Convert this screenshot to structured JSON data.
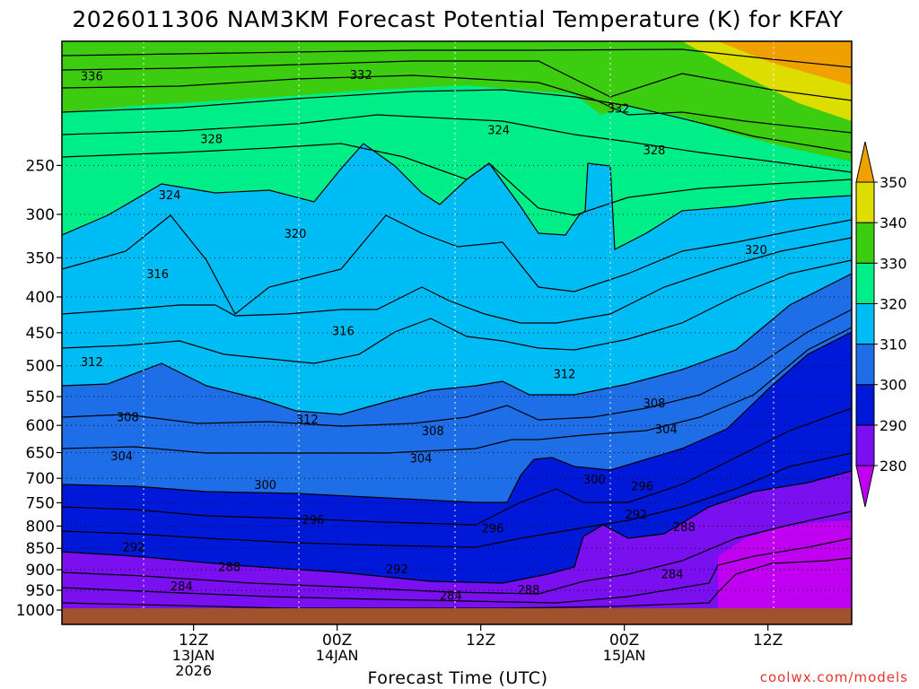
{
  "chart_data": {
    "type": "heatmap",
    "title": "2026011306 NAM3KM Forecast Potential Temperature (K) for KFAY",
    "xlabel": "Forecast Time (UTC)",
    "ylabel": "",
    "x_range_hours": [
      -5,
      61
    ],
    "y_range_hPa": [
      150,
      1000
    ],
    "y_ticks": [
      "250",
      "300",
      "350",
      "400",
      "450",
      "500",
      "550",
      "600",
      "650",
      "700",
      "750",
      "800",
      "850",
      "900",
      "950",
      "1000"
    ],
    "x_ticks": [
      {
        "hour": 6,
        "lines": [
          "12Z",
          "13JAN",
          "2026"
        ]
      },
      {
        "hour": 18,
        "lines": [
          "00Z",
          "14JAN"
        ]
      },
      {
        "hour": 30,
        "lines": [
          "12Z"
        ]
      },
      {
        "hour": 42,
        "lines": [
          "00Z",
          "15JAN"
        ]
      },
      {
        "hour": 54,
        "lines": [
          "12Z"
        ]
      }
    ],
    "colorbar": {
      "levels": [
        280,
        290,
        300,
        310,
        320,
        330,
        340,
        350
      ],
      "labels": [
        "280",
        "290",
        "300",
        "310",
        "320",
        "330",
        "340",
        "350"
      ],
      "colors": [
        "#c000f0",
        "#7a10f0",
        "#0018d8",
        "#1e6ee8",
        "#00bcf5",
        "#00ee88",
        "#3ccc10",
        "#dddd00",
        "#f0a000"
      ]
    },
    "contour_interval_K": 2,
    "contour_labels": [
      {
        "text": "336",
        "x": -2.5,
        "p": 175
      },
      {
        "text": "332",
        "x": 20,
        "p": 174
      },
      {
        "text": "332",
        "x": 41.5,
        "p": 200
      },
      {
        "text": "328",
        "x": 7.5,
        "p": 226
      },
      {
        "text": "324",
        "x": 31.5,
        "p": 218
      },
      {
        "text": "328",
        "x": 44.5,
        "p": 236
      },
      {
        "text": "324",
        "x": 4,
        "p": 280
      },
      {
        "text": "320",
        "x": 14.5,
        "p": 322
      },
      {
        "text": "320",
        "x": 53,
        "p": 341
      },
      {
        "text": "316",
        "x": 3,
        "p": 371
      },
      {
        "text": "316",
        "x": 18.5,
        "p": 448
      },
      {
        "text": "312",
        "x": -2.5,
        "p": 495
      },
      {
        "text": "312",
        "x": 37,
        "p": 514
      },
      {
        "text": "308",
        "x": 0.5,
        "p": 586
      },
      {
        "text": "312",
        "x": 15.5,
        "p": 590
      },
      {
        "text": "308",
        "x": 26,
        "p": 611
      },
      {
        "text": "308",
        "x": 44.5,
        "p": 562
      },
      {
        "text": "304",
        "x": 45.5,
        "p": 608
      },
      {
        "text": "304",
        "x": 0,
        "p": 658
      },
      {
        "text": "304",
        "x": 25,
        "p": 662
      },
      {
        "text": "300",
        "x": 12,
        "p": 714
      },
      {
        "text": "300",
        "x": 39.5,
        "p": 703
      },
      {
        "text": "296",
        "x": 43.5,
        "p": 717
      },
      {
        "text": "296",
        "x": 16,
        "p": 787
      },
      {
        "text": "296",
        "x": 31,
        "p": 806
      },
      {
        "text": "292",
        "x": 1,
        "p": 848
      },
      {
        "text": "292",
        "x": 43,
        "p": 776
      },
      {
        "text": "288",
        "x": 47,
        "p": 803
      },
      {
        "text": "288",
        "x": 9,
        "p": 894
      },
      {
        "text": "292",
        "x": 23,
        "p": 900
      },
      {
        "text": "284",
        "x": 5,
        "p": 941
      },
      {
        "text": "284",
        "x": 46,
        "p": 912
      },
      {
        "text": "288",
        "x": 34,
        "p": 950
      },
      {
        "text": "284",
        "x": 27.5,
        "p": 965
      }
    ]
  },
  "credit": "coolwx.com/models"
}
